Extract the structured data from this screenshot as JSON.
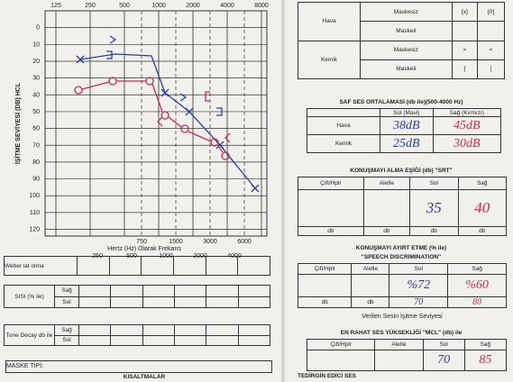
{
  "audiogram": {
    "freq_top": [
      "125",
      "250",
      "500",
      "1000",
      "2000",
      "4000",
      "8000"
    ],
    "levels": [
      "0",
      "10",
      "20",
      "30",
      "40",
      "50",
      "60",
      "70",
      "80",
      "90",
      "100",
      "110",
      "120"
    ],
    "y_label": "İŞİTME SEVİYESİ (DB) HCL",
    "freq_mid": [
      "750",
      "1500",
      "3000",
      "6000"
    ],
    "x_label": "Hertz (Hz) Olarak Frekans",
    "freq_bottom": [
      "250",
      "500",
      "1000",
      "2000",
      "4000"
    ]
  },
  "left_tables": {
    "weber": "Weber lat olma",
    "sisi": "SISI (% ile)",
    "sisi_rows": [
      "Sağ",
      "Sol"
    ],
    "tone_decay": "Tone Decay db ile",
    "tone_rows": [
      "Sağ",
      "Sol"
    ],
    "mask_type": "MASKE TİPİ:",
    "abbreviations": "KISALTMALAR"
  },
  "legend_table": {
    "rows": [
      [
        "Hava",
        "Maskesiz",
        "[x]",
        "[0]"
      ],
      [
        "",
        "Maskeli",
        "",
        ""
      ],
      [
        "Kemik",
        "Maskesiz",
        ">",
        "<"
      ],
      [
        "",
        "Maskeli",
        "]",
        "["
      ]
    ]
  },
  "pure_tone_average": {
    "title": "SAF SES ORTALAMASI (db ile)(500-4000 Hz)",
    "headers": [
      "Sol (Mavi)",
      "Sağ (Kırmızı)"
    ],
    "rows": [
      [
        "Hava",
        "38dB",
        "45dB"
      ],
      [
        "Kemik",
        "25dB",
        "30dB"
      ]
    ]
  },
  "srt": {
    "title": "KONUŞMAYI ALMA EŞİĞİ (db) \"SRT\"",
    "headers": [
      "Çift/Hplr",
      "Aletle",
      "Sol",
      "Sağ"
    ],
    "values": [
      "35",
      "40"
    ],
    "units": [
      "db",
      "db",
      "db",
      "db"
    ]
  },
  "discrimination": {
    "title": "KONUŞMAYI AYIRT ETME (% ile)",
    "subtitle": "\"SPEECH DISCRIMINATION\"",
    "headers": [
      "Çift/Hplr",
      "Aletle",
      "Sol",
      "Sağ"
    ],
    "values": [
      "%72",
      "%60"
    ],
    "units": [
      "db",
      "db"
    ],
    "levels": [
      "70",
      "80"
    ],
    "note": "Verilen Sesin İşitme Seviyesi"
  },
  "mcl": {
    "title": "EN RAHAT SES YÜKSEKLİĞİ \"MCL\" (db) ile",
    "headers": [
      "Çift/Hplr",
      "Aletle",
      "Sol",
      "Sağ"
    ],
    "values": [
      "70",
      "85"
    ]
  },
  "footer": "TEDİRGİN EDİCİ SES"
}
